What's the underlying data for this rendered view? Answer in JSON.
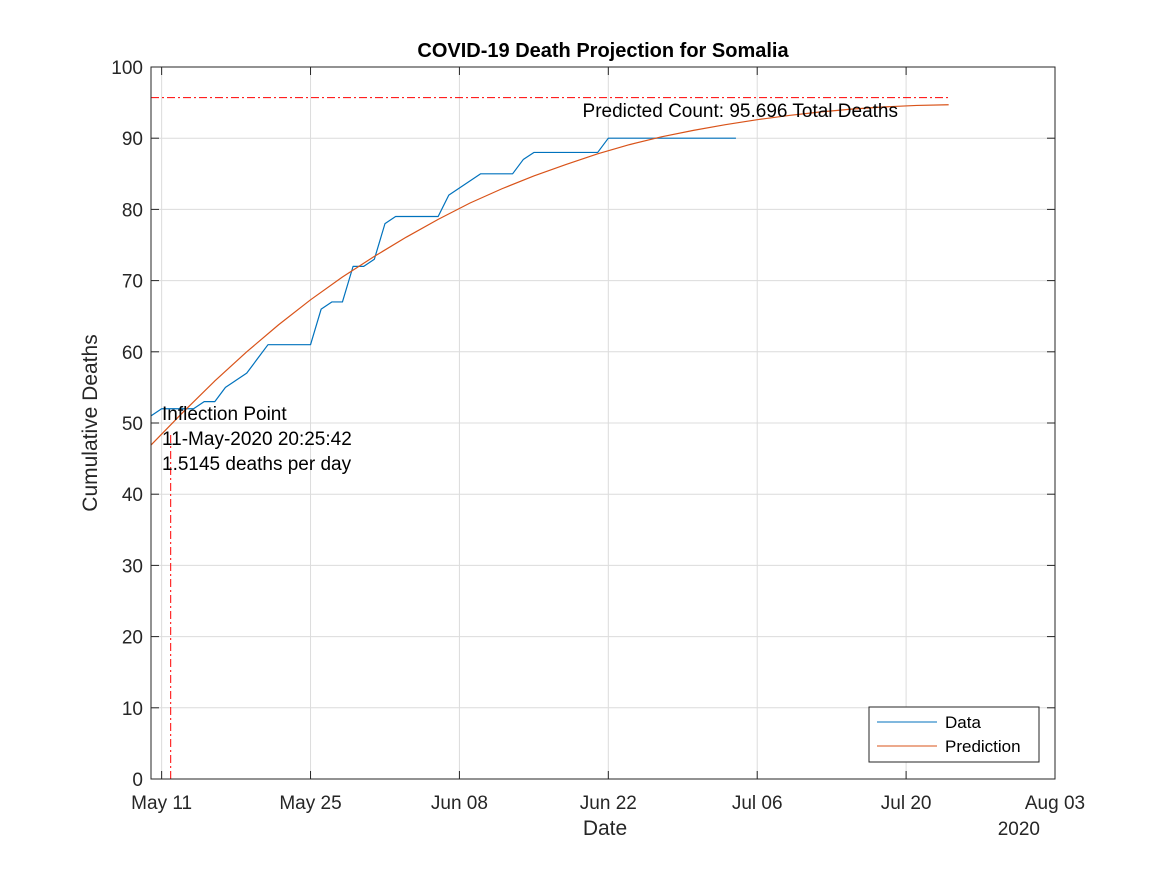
{
  "chart_data": {
    "type": "line",
    "title": "COVID-19 Death Projection for Somalia",
    "xlabel": "Date",
    "ylabel": "Cumulative Deaths",
    "x_year_label": "2020",
    "xlim": [
      "2020-05-10",
      "2020-08-03"
    ],
    "ylim": [
      0,
      100
    ],
    "x_ticks": [
      {
        "date": "2020-05-11",
        "label": "May 11"
      },
      {
        "date": "2020-05-25",
        "label": "May 25"
      },
      {
        "date": "2020-06-08",
        "label": "Jun 08"
      },
      {
        "date": "2020-06-22",
        "label": "Jun 22"
      },
      {
        "date": "2020-07-06",
        "label": "Jul 06"
      },
      {
        "date": "2020-07-20",
        "label": "Jul 20"
      },
      {
        "date": "2020-08-03",
        "label": "Aug 03"
      }
    ],
    "y_ticks": [
      0,
      10,
      20,
      30,
      40,
      50,
      60,
      70,
      80,
      90,
      100
    ],
    "grid": true,
    "legend_position": "bottom-right",
    "series": [
      {
        "name": "Data",
        "color": "#0072BD",
        "step": false,
        "points": [
          [
            "2020-05-10",
            51
          ],
          [
            "2020-05-11",
            52
          ],
          [
            "2020-05-12",
            52
          ],
          [
            "2020-05-13",
            52
          ],
          [
            "2020-05-14",
            52
          ],
          [
            "2020-05-15",
            53
          ],
          [
            "2020-05-16",
            53
          ],
          [
            "2020-05-17",
            55
          ],
          [
            "2020-05-18",
            56
          ],
          [
            "2020-05-19",
            57
          ],
          [
            "2020-05-20",
            59
          ],
          [
            "2020-05-21",
            61
          ],
          [
            "2020-05-22",
            61
          ],
          [
            "2020-05-23",
            61
          ],
          [
            "2020-05-24",
            61
          ],
          [
            "2020-05-25",
            61
          ],
          [
            "2020-05-26",
            66
          ],
          [
            "2020-05-27",
            67
          ],
          [
            "2020-05-28",
            67
          ],
          [
            "2020-05-29",
            72
          ],
          [
            "2020-05-30",
            72
          ],
          [
            "2020-05-31",
            73
          ],
          [
            "2020-06-01",
            78
          ],
          [
            "2020-06-02",
            79
          ],
          [
            "2020-06-03",
            79
          ],
          [
            "2020-06-04",
            79
          ],
          [
            "2020-06-05",
            79
          ],
          [
            "2020-06-06",
            79
          ],
          [
            "2020-06-07",
            82
          ],
          [
            "2020-06-08",
            83
          ],
          [
            "2020-06-09",
            84
          ],
          [
            "2020-06-10",
            85
          ],
          [
            "2020-06-11",
            85
          ],
          [
            "2020-06-12",
            85
          ],
          [
            "2020-06-13",
            85
          ],
          [
            "2020-06-14",
            87
          ],
          [
            "2020-06-15",
            88
          ],
          [
            "2020-06-16",
            88
          ],
          [
            "2020-06-17",
            88
          ],
          [
            "2020-06-18",
            88
          ],
          [
            "2020-06-19",
            88
          ],
          [
            "2020-06-20",
            88
          ],
          [
            "2020-06-21",
            88
          ],
          [
            "2020-06-22",
            90
          ],
          [
            "2020-06-23",
            90
          ],
          [
            "2020-06-24",
            90
          ],
          [
            "2020-06-25",
            90
          ],
          [
            "2020-06-26",
            90
          ],
          [
            "2020-06-27",
            90
          ],
          [
            "2020-06-28",
            90
          ],
          [
            "2020-06-29",
            90
          ],
          [
            "2020-06-30",
            90
          ],
          [
            "2020-07-01",
            90
          ],
          [
            "2020-07-02",
            90
          ],
          [
            "2020-07-03",
            90
          ],
          [
            "2020-07-04",
            90
          ]
        ]
      },
      {
        "name": "Prediction",
        "color": "#D95319",
        "points": [
          [
            "2020-05-10",
            46.9
          ],
          [
            "2020-05-13",
            51.5
          ],
          [
            "2020-05-16",
            55.9
          ],
          [
            "2020-05-19",
            60.0
          ],
          [
            "2020-05-22",
            63.8
          ],
          [
            "2020-05-25",
            67.3
          ],
          [
            "2020-05-28",
            70.5
          ],
          [
            "2020-05-31",
            73.4
          ],
          [
            "2020-06-03",
            76.1
          ],
          [
            "2020-06-06",
            78.6
          ],
          [
            "2020-06-09",
            80.9
          ],
          [
            "2020-06-12",
            82.9
          ],
          [
            "2020-06-15",
            84.7
          ],
          [
            "2020-06-18",
            86.3
          ],
          [
            "2020-06-21",
            87.8
          ],
          [
            "2020-06-24",
            89.1
          ],
          [
            "2020-06-27",
            90.2
          ],
          [
            "2020-06-30",
            91.1
          ],
          [
            "2020-07-03",
            91.9
          ],
          [
            "2020-07-06",
            92.6
          ],
          [
            "2020-07-09",
            93.2
          ],
          [
            "2020-07-12",
            93.7
          ],
          [
            "2020-07-15",
            94.1
          ],
          [
            "2020-07-18",
            94.4
          ],
          [
            "2020-07-21",
            94.6
          ],
          [
            "2020-07-24",
            94.7
          ]
        ]
      }
    ],
    "reference_lines": {
      "color": "#FF0000",
      "horizontal": {
        "y": 95.696,
        "x_start": "2020-05-10",
        "x_end": "2020-07-24"
      },
      "vertical": {
        "x": "2020-05-11T20:25:42",
        "y_start": 0,
        "y_end": 48.5
      }
    },
    "annotations": {
      "predicted_count": "Predicted Count: 95.696 Total Deaths",
      "inflection_lines": [
        "Inflection Point",
        "11-May-2020 20:25:42",
        "1.5145 deaths per day"
      ]
    }
  }
}
